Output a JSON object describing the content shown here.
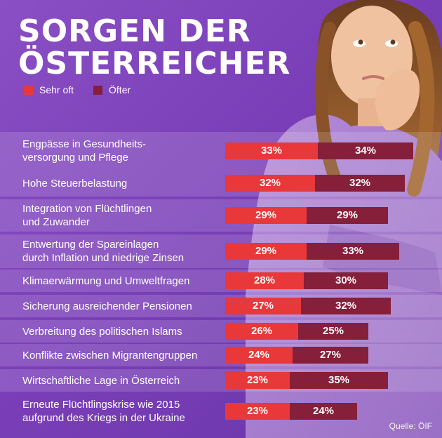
{
  "header": {
    "title_line1": "SORGEN DER",
    "title_line2": "ÖSTERREICHER"
  },
  "colors": {
    "sehr_oft": "#e8383a",
    "oefter": "#861f3a",
    "background": "#7a3fb8"
  },
  "chart_data": {
    "type": "bar",
    "orientation": "horizontal",
    "stacked": true,
    "legend": [
      "Sehr oft",
      "Öfter"
    ],
    "legend_position": "top-left",
    "categories": [
      "Engpässe in Gesundheits-\nversorgung und Pflege",
      "Hohe Steuerbelastung",
      "Integration von Flüchtlingen\nund Zuwander",
      "Entwertung der Spareinlagen\ndurch Inflation und niedrige Zinsen",
      "Klimaerwärmung und Umweltfragen",
      "Sicherung ausreichender Pensionen",
      "Verbreitung des politischen Islams",
      "Konflikte zwischen Migrantengruppen",
      "Wirtschaftliche Lage in Österreich",
      "Erneute Flüchtlingskrise wie 2015\naufgrund des Kriegs in der Ukraine"
    ],
    "series": [
      {
        "name": "Sehr oft",
        "values": [
          33,
          32,
          29,
          29,
          28,
          27,
          26,
          24,
          23,
          23
        ],
        "labels": [
          "33%",
          "32%",
          "29%",
          "29%",
          "28%",
          "27%",
          "26%",
          "24%",
          "23%",
          "23%"
        ]
      },
      {
        "name": "Öfter",
        "values": [
          34,
          32,
          29,
          33,
          30,
          32,
          25,
          27,
          35,
          24
        ],
        "labels": [
          "34%",
          "32%",
          "29%",
          "33%",
          "30%",
          "32%",
          "25%",
          "27%",
          "35%",
          "24%"
        ]
      }
    ],
    "source": "Quelle: ÖIF"
  }
}
